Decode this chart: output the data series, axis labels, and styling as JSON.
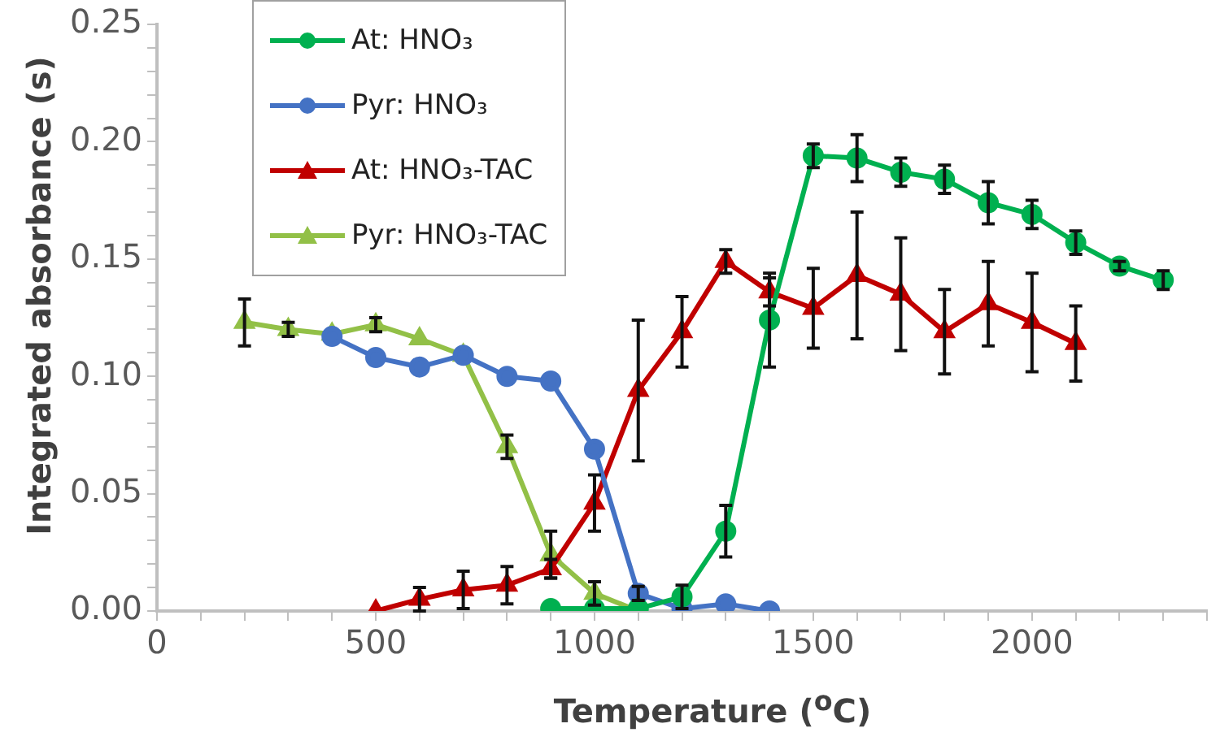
{
  "chart_data": {
    "type": "line",
    "xlabel": "Temperature ($^{o}$C)",
    "ylabel": "Integrated absorbance (s)",
    "xlim": [
      0,
      2400
    ],
    "ylim": [
      0,
      0.25
    ],
    "xticks": [
      0,
      {
        "value": 100,
        "label": null
      },
      {
        "value": 200,
        "label": null
      },
      {
        "value": 300,
        "label": null
      },
      {
        "value": 400,
        "label": null
      },
      500,
      {
        "value": 600,
        "label": null
      },
      {
        "value": 700,
        "label": null
      },
      {
        "value": 800,
        "label": null
      },
      {
        "value": 900,
        "label": null
      },
      1000,
      {
        "value": 1100,
        "label": null
      },
      {
        "value": 1200,
        "label": null
      },
      {
        "value": 1300,
        "label": null
      },
      {
        "value": 1400,
        "label": null
      },
      1500,
      {
        "value": 1600,
        "label": null
      },
      {
        "value": 1700,
        "label": null
      },
      {
        "value": 1800,
        "label": null
      },
      {
        "value": 1900,
        "label": null
      },
      2000,
      {
        "value": 2100,
        "label": null
      },
      {
        "value": 2200,
        "label": null
      },
      {
        "value": 2300,
        "label": null
      },
      {
        "value": 2400,
        "label": null
      }
    ],
    "yticks": [
      {
        "value": 0,
        "label": "0.00"
      },
      {
        "value": 0.01,
        "label": null
      },
      {
        "value": 0.02,
        "label": null
      },
      {
        "value": 0.03,
        "label": null
      },
      {
        "value": 0.04,
        "label": null
      },
      {
        "value": 0.05,
        "label": "0.05"
      },
      {
        "value": 0.06,
        "label": null
      },
      {
        "value": 0.07,
        "label": null
      },
      {
        "value": 0.08,
        "label": null
      },
      {
        "value": 0.09,
        "label": null
      },
      {
        "value": 0.1,
        "label": "0.10"
      },
      {
        "value": 0.11,
        "label": null
      },
      {
        "value": 0.12,
        "label": null
      },
      {
        "value": 0.13,
        "label": null
      },
      {
        "value": 0.14,
        "label": null
      },
      {
        "value": 0.15,
        "label": "0.15"
      },
      {
        "value": 0.16,
        "label": null
      },
      {
        "value": 0.17,
        "label": null
      },
      {
        "value": 0.18,
        "label": null
      },
      {
        "value": 0.19,
        "label": null
      },
      {
        "value": 0.2,
        "label": "0.20"
      },
      {
        "value": 0.21,
        "label": null
      },
      {
        "value": 0.22,
        "label": null
      },
      {
        "value": 0.23,
        "label": null
      },
      {
        "value": 0.24,
        "label": null
      },
      {
        "value": 0.25,
        "label": "0.25"
      }
    ],
    "grid": false,
    "legend": "top left",
    "line_style": "solid",
    "series": [
      {
        "name": "At: HNO₃",
        "color": "#00b050",
        "marker": "circle",
        "x": [
          900,
          1000,
          1100,
          1200,
          1300,
          1400,
          1500,
          1600,
          1700,
          1800,
          1900,
          2000,
          2100,
          2200,
          2300
        ],
        "values": [
          0.001,
          0.001,
          0.001,
          0.006,
          0.034,
          0.124,
          0.194,
          0.193,
          0.187,
          0.184,
          0.174,
          0.169,
          0.157,
          0.147,
          0.141
        ],
        "errors": [
          null,
          null,
          null,
          0.005,
          0.011,
          0.02,
          0.005,
          0.01,
          0.006,
          0.006,
          0.009,
          0.006,
          0.005,
          0.002,
          0.004
        ]
      },
      {
        "name": "Pyr: HNO₃",
        "color": "#4472c4",
        "marker": "circle",
        "x": [
          400,
          500,
          600,
          700,
          800,
          900,
          1000,
          1100,
          1200,
          1300,
          1400
        ],
        "values": [
          0.117,
          0.108,
          0.104,
          0.109,
          0.1,
          0.098,
          0.069,
          0.0075,
          0.001,
          0.003,
          0
        ],
        "errors": [
          null,
          null,
          null,
          null,
          null,
          null,
          null,
          0.003,
          null,
          null,
          null
        ]
      },
      {
        "name": "At: HNO₃-TAC",
        "color": "#c00000",
        "marker": "triangle",
        "x": [
          500,
          600,
          700,
          800,
          900,
          1000,
          1100,
          1200,
          1300,
          1400,
          1500,
          1600,
          1700,
          1800,
          1900,
          2000,
          2100
        ],
        "values": [
          0,
          0.005,
          0.009,
          0.011,
          0.018,
          0.046,
          0.094,
          0.119,
          0.149,
          0.136,
          0.129,
          0.143,
          0.135,
          0.119,
          0.131,
          0.123,
          0.114
        ],
        "errors": [
          null,
          0.005,
          0.008,
          0.008,
          0.004,
          0.012,
          0.03,
          0.015,
          0.005,
          0.006,
          0.017,
          0.027,
          0.024,
          0.018,
          0.018,
          0.021,
          0.016
        ]
      },
      {
        "name": "Pyr: HNO₃-TAC",
        "color": "#92c047",
        "marker": "triangle",
        "x": [
          200,
          300,
          400,
          500,
          600,
          700,
          800,
          900,
          1000,
          1100
        ],
        "values": [
          0.123,
          0.12,
          0.118,
          0.122,
          0.116,
          0.109,
          0.07,
          0.024,
          0.0075,
          0
        ],
        "errors": [
          0.01,
          0.003,
          null,
          0.003,
          null,
          null,
          0.005,
          0.01,
          0.005,
          null
        ]
      }
    ]
  }
}
